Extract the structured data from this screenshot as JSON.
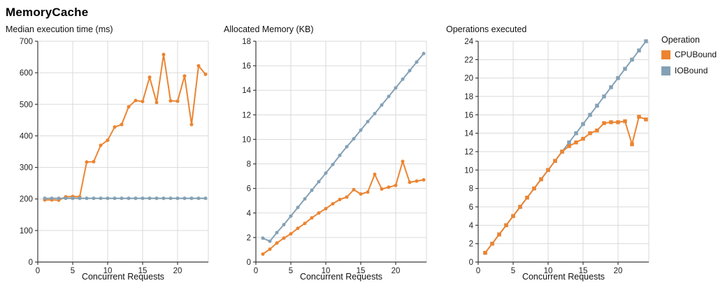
{
  "page_title": "MemoryCache",
  "colors": {
    "series": {
      "CPUBound": "#EC8431",
      "IOBound": "#84A1B5"
    },
    "grid": "#DADADA",
    "axis": "#3B3B3B",
    "text": "#1F1F1F"
  },
  "legend": {
    "title": "Operation",
    "position": "right",
    "items": [
      {
        "label": "CPUBound"
      },
      {
        "label": "IOBound"
      }
    ]
  },
  "chart_data": [
    {
      "type": "line",
      "title": "Median execution time (ms)",
      "xlabel": "Concurrent Requests",
      "ylabel": "",
      "grid": true,
      "marker": "circle",
      "xlim": [
        0,
        24.4
      ],
      "ylim": [
        0,
        700
      ],
      "xticks": [
        0,
        5,
        10,
        15,
        20
      ],
      "yticks": [
        0,
        100,
        200,
        300,
        400,
        500,
        600,
        700
      ],
      "x": [
        1,
        2,
        3,
        4,
        5,
        6,
        7,
        8,
        9,
        10,
        11,
        12,
        13,
        14,
        15,
        16,
        17,
        18,
        19,
        20,
        21,
        22,
        23,
        24
      ],
      "series": [
        {
          "name": "CPUBound",
          "values": [
            197,
            197,
            196,
            207,
            208,
            207,
            317,
            318,
            370,
            386,
            428,
            436,
            492,
            512,
            509,
            586,
            506,
            658,
            511,
            510,
            590,
            436,
            622,
            595
          ]
        },
        {
          "name": "IOBound",
          "values": [
            202,
            202,
            202,
            202,
            202,
            202,
            202,
            202,
            202,
            202,
            202,
            202,
            202,
            202,
            202,
            202,
            202,
            202,
            202,
            202,
            202,
            202,
            202,
            202
          ]
        }
      ]
    },
    {
      "type": "line",
      "title": "Allocated Memory (KB)",
      "xlabel": "Concurrent Requests",
      "ylabel": "",
      "grid": true,
      "marker": "circle",
      "xlim": [
        0,
        24.4
      ],
      "ylim": [
        0,
        18
      ],
      "xticks": [
        0,
        5,
        10,
        15,
        20
      ],
      "yticks": [
        0,
        2,
        4,
        6,
        8,
        10,
        12,
        14,
        16,
        18
      ],
      "x": [
        1,
        2,
        3,
        4,
        5,
        6,
        7,
        8,
        9,
        10,
        11,
        12,
        13,
        14,
        15,
        16,
        17,
        18,
        19,
        20,
        21,
        22,
        23,
        24
      ],
      "series": [
        {
          "name": "CPUBound",
          "values": [
            0.65,
            1.05,
            1.55,
            1.95,
            2.3,
            2.75,
            3.15,
            3.6,
            4.0,
            4.35,
            4.75,
            5.1,
            5.3,
            5.9,
            5.55,
            5.7,
            7.15,
            5.95,
            6.1,
            6.25,
            8.2,
            6.5,
            6.6,
            6.7
          ]
        },
        {
          "name": "IOBound",
          "values": [
            1.95,
            1.7,
            2.4,
            3.05,
            3.75,
            4.45,
            5.15,
            5.85,
            6.55,
            7.25,
            7.95,
            8.7,
            9.4,
            10.05,
            10.75,
            11.45,
            12.1,
            12.8,
            13.5,
            14.2,
            14.9,
            15.6,
            16.3,
            17.0
          ]
        }
      ]
    },
    {
      "type": "line",
      "title": "Operations executed",
      "xlabel": "Concurrent Requests",
      "ylabel": "",
      "grid": true,
      "marker": "square",
      "xlim": [
        0,
        24.4
      ],
      "ylim": [
        0,
        24
      ],
      "xticks": [
        0,
        5,
        10,
        15,
        20
      ],
      "yticks": [
        0,
        2,
        4,
        6,
        8,
        10,
        12,
        14,
        16,
        18,
        20,
        22,
        24
      ],
      "x": [
        1,
        2,
        3,
        4,
        5,
        6,
        7,
        8,
        9,
        10,
        11,
        12,
        13,
        14,
        15,
        16,
        17,
        18,
        19,
        20,
        21,
        22,
        23,
        24
      ],
      "series": [
        {
          "name": "IOBound",
          "values": [
            1,
            2,
            3,
            4,
            5,
            6,
            7,
            8,
            9,
            10,
            11,
            12,
            13,
            14,
            15,
            16,
            17,
            18,
            19,
            20,
            21,
            22,
            23,
            24
          ]
        },
        {
          "name": "CPUBound",
          "values": [
            1,
            2,
            3,
            4,
            5,
            6,
            7,
            8,
            9,
            10,
            11,
            12,
            12.6,
            13.0,
            13.4,
            14.0,
            14.3,
            15.1,
            15.2,
            15.2,
            15.3,
            12.8,
            15.8,
            15.5
          ]
        }
      ]
    }
  ]
}
